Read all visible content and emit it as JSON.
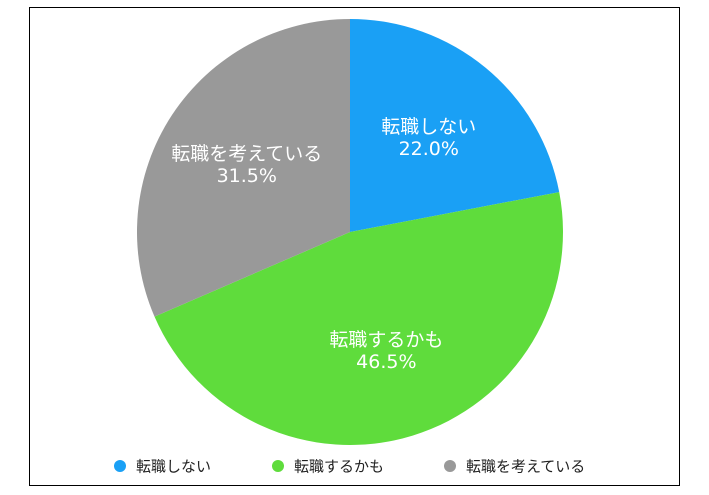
{
  "chart_data": {
    "type": "pie",
    "title": "",
    "slices": [
      {
        "label": "転職しない",
        "value": 22.0,
        "value_label": "22.0%",
        "color": "#1aa0f5"
      },
      {
        "label": "転職するかも",
        "value": 46.5,
        "value_label": "46.5%",
        "color": "#5fdc3c"
      },
      {
        "label": "転職を考えている",
        "value": 31.5,
        "value_label": "31.5%",
        "color": "#999999"
      }
    ],
    "start_angle": "12 o'clock",
    "direction": "clockwise",
    "legend_position": "bottom",
    "slice_label_color": "#ffffff"
  }
}
